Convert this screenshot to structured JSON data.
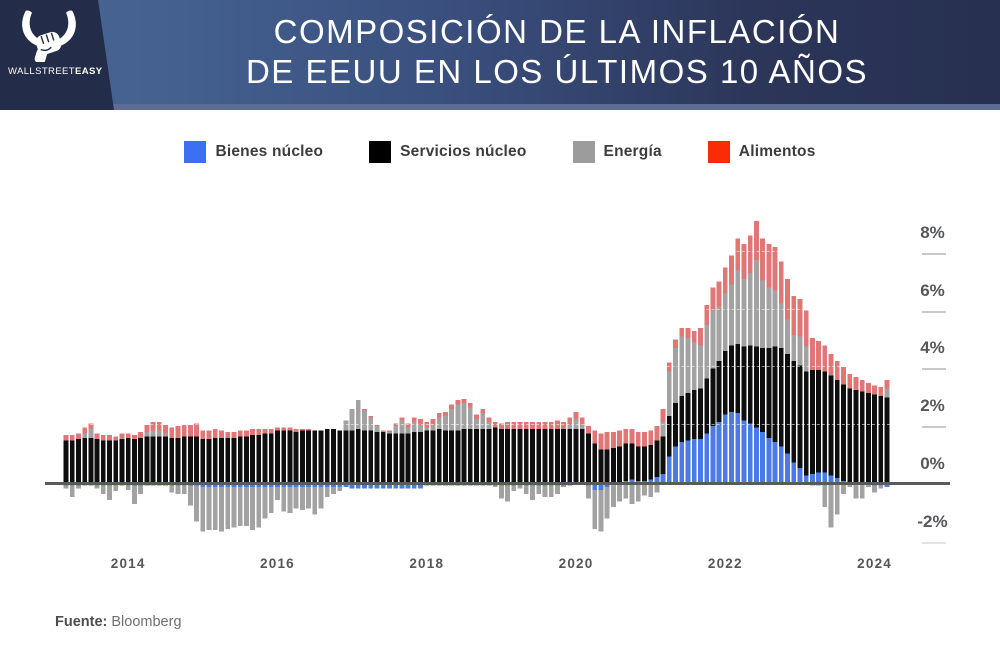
{
  "header": {
    "logo_text_regular": "WALLSTREET",
    "logo_text_bold": "EASY",
    "title_line1": "COMPOSICIÓN DE LA INFLACIÓN",
    "title_line2": "DE EEUU EN LOS ÚLTIMOS 10 AÑOS"
  },
  "legend": {
    "items": [
      {
        "label": "Bienes núcleo",
        "color": "#3d6ff2"
      },
      {
        "label": "Servicios núcleo",
        "color": "#000000"
      },
      {
        "label": "Energía",
        "color": "#9c9c9c"
      },
      {
        "label": "Alimentos",
        "color": "#fb2c05"
      }
    ]
  },
  "chart_data": {
    "type": "bar",
    "subtype": "stacked-monthly-contributions",
    "unit": "percentage points of YoY US CPI",
    "start_month": "2013-03",
    "end_month": "2024-03",
    "months_count": 133,
    "x_axis": {
      "ticks": [
        "2014",
        "2016",
        "2018",
        "2020",
        "2022",
        "2024"
      ]
    },
    "y_axis": {
      "ticks": [
        {
          "label": "8%",
          "value": 8
        },
        {
          "label": "6%",
          "value": 6
        },
        {
          "label": "4%",
          "value": 4
        },
        {
          "label": "2%",
          "value": 2
        },
        {
          "label": "0%",
          "value": 0
        },
        {
          "label": "-2%",
          "value": -2
        }
      ],
      "range": [
        -2.5,
        9.5
      ],
      "grid": "dashed-over-bars"
    },
    "series": [
      {
        "name": "Bienes núcleo",
        "color": "#4b79e6",
        "values": [
          -0.05,
          -0.05,
          -0.05,
          -0.05,
          -0.05,
          -0.05,
          -0.05,
          -0.05,
          -0.05,
          -0.05,
          -0.05,
          -0.05,
          -0.05,
          -0.05,
          -0.05,
          -0.05,
          -0.05,
          -0.05,
          -0.05,
          -0.05,
          -0.05,
          -0.05,
          -0.1,
          -0.1,
          -0.1,
          -0.1,
          -0.1,
          -0.1,
          -0.1,
          -0.1,
          -0.1,
          -0.1,
          -0.1,
          -0.1,
          -0.1,
          -0.1,
          -0.1,
          -0.1,
          -0.1,
          -0.1,
          -0.1,
          -0.1,
          -0.1,
          -0.1,
          -0.1,
          -0.1,
          -0.15,
          -0.15,
          -0.15,
          -0.15,
          -0.15,
          -0.15,
          -0.15,
          -0.15,
          -0.15,
          -0.15,
          -0.15,
          -0.15,
          -0.05,
          -0.05,
          -0.05,
          -0.05,
          -0.05,
          -0.05,
          -0.05,
          -0.05,
          -0.05,
          -0.05,
          -0.05,
          -0.05,
          -0.05,
          -0.05,
          -0.05,
          -0.05,
          -0.05,
          -0.05,
          -0.05,
          -0.05,
          -0.05,
          -0.05,
          -0.05,
          -0.05,
          0,
          0,
          -0.05,
          -0.2,
          -0.2,
          -0.1,
          0,
          0.05,
          0.1,
          0.15,
          0.1,
          0.1,
          0.15,
          0.25,
          0.35,
          0.95,
          1.3,
          1.45,
          1.5,
          1.55,
          1.55,
          1.75,
          2.0,
          2.15,
          2.4,
          2.5,
          2.45,
          2.2,
          2.1,
          1.95,
          1.8,
          1.6,
          1.45,
          1.3,
          1.05,
          0.75,
          0.55,
          0.3,
          0.35,
          0.4,
          0.4,
          0.3,
          0.2,
          0.1,
          0,
          0,
          0,
          0,
          -0.05,
          -0.05,
          -0.1
        ]
      },
      {
        "name": "Servicios núcleo",
        "color": "#0e0e0e",
        "values": [
          1.5,
          1.5,
          1.55,
          1.6,
          1.6,
          1.55,
          1.5,
          1.5,
          1.5,
          1.55,
          1.6,
          1.55,
          1.6,
          1.65,
          1.65,
          1.65,
          1.65,
          1.6,
          1.6,
          1.65,
          1.65,
          1.65,
          1.55,
          1.55,
          1.6,
          1.6,
          1.6,
          1.6,
          1.65,
          1.65,
          1.7,
          1.7,
          1.75,
          1.75,
          1.85,
          1.85,
          1.85,
          1.8,
          1.85,
          1.85,
          1.85,
          1.85,
          1.9,
          1.9,
          1.85,
          1.85,
          1.85,
          1.9,
          1.85,
          1.85,
          1.8,
          1.8,
          1.75,
          1.75,
          1.75,
          1.75,
          1.8,
          1.8,
          1.85,
          1.85,
          1.9,
          1.85,
          1.85,
          1.85,
          1.9,
          1.9,
          1.9,
          1.9,
          1.9,
          1.95,
          1.9,
          1.9,
          1.9,
          1.9,
          1.9,
          1.9,
          1.9,
          1.9,
          1.9,
          1.9,
          1.9,
          1.9,
          1.9,
          1.9,
          1.75,
          1.4,
          1.2,
          1.2,
          1.25,
          1.25,
          1.3,
          1.25,
          1.2,
          1.2,
          1.2,
          1.25,
          1.3,
          1.4,
          1.5,
          1.6,
          1.65,
          1.7,
          1.75,
          1.9,
          2.0,
          2.1,
          2.2,
          2.3,
          2.4,
          2.55,
          2.7,
          2.8,
          2.9,
          3.1,
          3.3,
          3.4,
          3.45,
          3.5,
          3.55,
          3.6,
          3.6,
          3.55,
          3.5,
          3.45,
          3.4,
          3.35,
          3.3,
          3.25,
          3.2,
          3.15,
          3.1,
          3.05,
          3.0
        ]
      },
      {
        "name": "Energía",
        "color": "#a2a2a2",
        "values": [
          -0.1,
          -0.4,
          -0.1,
          0.15,
          0.3,
          -0.1,
          -0.3,
          -0.5,
          -0.2,
          0.05,
          -0.15,
          -0.65,
          -0.3,
          0.15,
          0.2,
          0.2,
          0.1,
          -0.25,
          -0.3,
          -0.3,
          -0.7,
          -1.25,
          -1.55,
          -1.5,
          -1.5,
          -1.55,
          -1.45,
          -1.4,
          -1.35,
          -1.35,
          -1.5,
          -1.4,
          -1.1,
          -0.9,
          -0.45,
          -0.85,
          -0.9,
          -0.75,
          -0.8,
          -0.75,
          -0.95,
          -0.75,
          -0.35,
          -0.25,
          -0.15,
          0.35,
          0.75,
          1.0,
          0.7,
          0.45,
          0.2,
          0,
          0.05,
          0.25,
          0.45,
          0.2,
          0.35,
          0.25,
          0.1,
          0.2,
          0.4,
          0.5,
          0.75,
          0.9,
          0.9,
          0.75,
          0.35,
          0.55,
          0.25,
          -0.05,
          -0.45,
          -0.55,
          -0.2,
          -0.1,
          -0.3,
          -0.5,
          -0.3,
          -0.4,
          -0.4,
          -0.3,
          -0.05,
          0.15,
          0.35,
          0.15,
          -0.45,
          -1.35,
          -1.45,
          -1.1,
          -0.8,
          -0.6,
          -0.5,
          -0.7,
          -0.6,
          -0.4,
          -0.45,
          -0.3,
          0.5,
          1.55,
          1.9,
          2.05,
          1.9,
          1.65,
          1.5,
          1.85,
          2.0,
          1.9,
          2.0,
          2.1,
          2.55,
          2.35,
          2.5,
          3.0,
          2.35,
          2.1,
          1.95,
          1.55,
          1.2,
          0.9,
          1.0,
          0.85,
          -0.05,
          -0.05,
          -0.8,
          -1.5,
          -1.05,
          -0.35,
          -0.1,
          -0.5,
          -0.5,
          -0.1,
          -0.25,
          -0.1,
          0.3
        ]
      },
      {
        "name": "Alimentos",
        "color": "#e17676",
        "values": [
          0.2,
          0.2,
          0.2,
          0.2,
          0.2,
          0.2,
          0.2,
          0.2,
          0.15,
          0.15,
          0.15,
          0.15,
          0.2,
          0.25,
          0.3,
          0.3,
          0.3,
          0.35,
          0.4,
          0.4,
          0.4,
          0.45,
          0.3,
          0.3,
          0.3,
          0.25,
          0.2,
          0.2,
          0.2,
          0.2,
          0.2,
          0.2,
          0.15,
          0.15,
          0.1,
          0.1,
          0.1,
          0.1,
          0.05,
          0.05,
          0,
          0,
          0,
          0,
          0,
          0,
          0,
          0,
          0.05,
          0.05,
          0.05,
          0.05,
          0.05,
          0.1,
          0.1,
          0.15,
          0.15,
          0.2,
          0.2,
          0.2,
          0.15,
          0.15,
          0.15,
          0.15,
          0.15,
          0.15,
          0.15,
          0.15,
          0.15,
          0.2,
          0.2,
          0.25,
          0.25,
          0.25,
          0.25,
          0.25,
          0.25,
          0.25,
          0.25,
          0.3,
          0.25,
          0.25,
          0.25,
          0.25,
          0.25,
          0.45,
          0.55,
          0.6,
          0.55,
          0.55,
          0.5,
          0.5,
          0.5,
          0.5,
          0.5,
          0.5,
          0.45,
          0.3,
          0.3,
          0.3,
          0.35,
          0.4,
          0.6,
          0.7,
          0.8,
          0.85,
          0.9,
          1.0,
          1.1,
          1.2,
          1.3,
          1.35,
          1.45,
          1.5,
          1.5,
          1.45,
          1.4,
          1.35,
          1.3,
          1.25,
          1.1,
          1.0,
          0.9,
          0.75,
          0.65,
          0.6,
          0.5,
          0.45,
          0.4,
          0.35,
          0.3,
          0.3,
          0.3
        ]
      }
    ]
  },
  "footer": {
    "source_label": "Fuente:",
    "source_value": "Bloomberg"
  }
}
